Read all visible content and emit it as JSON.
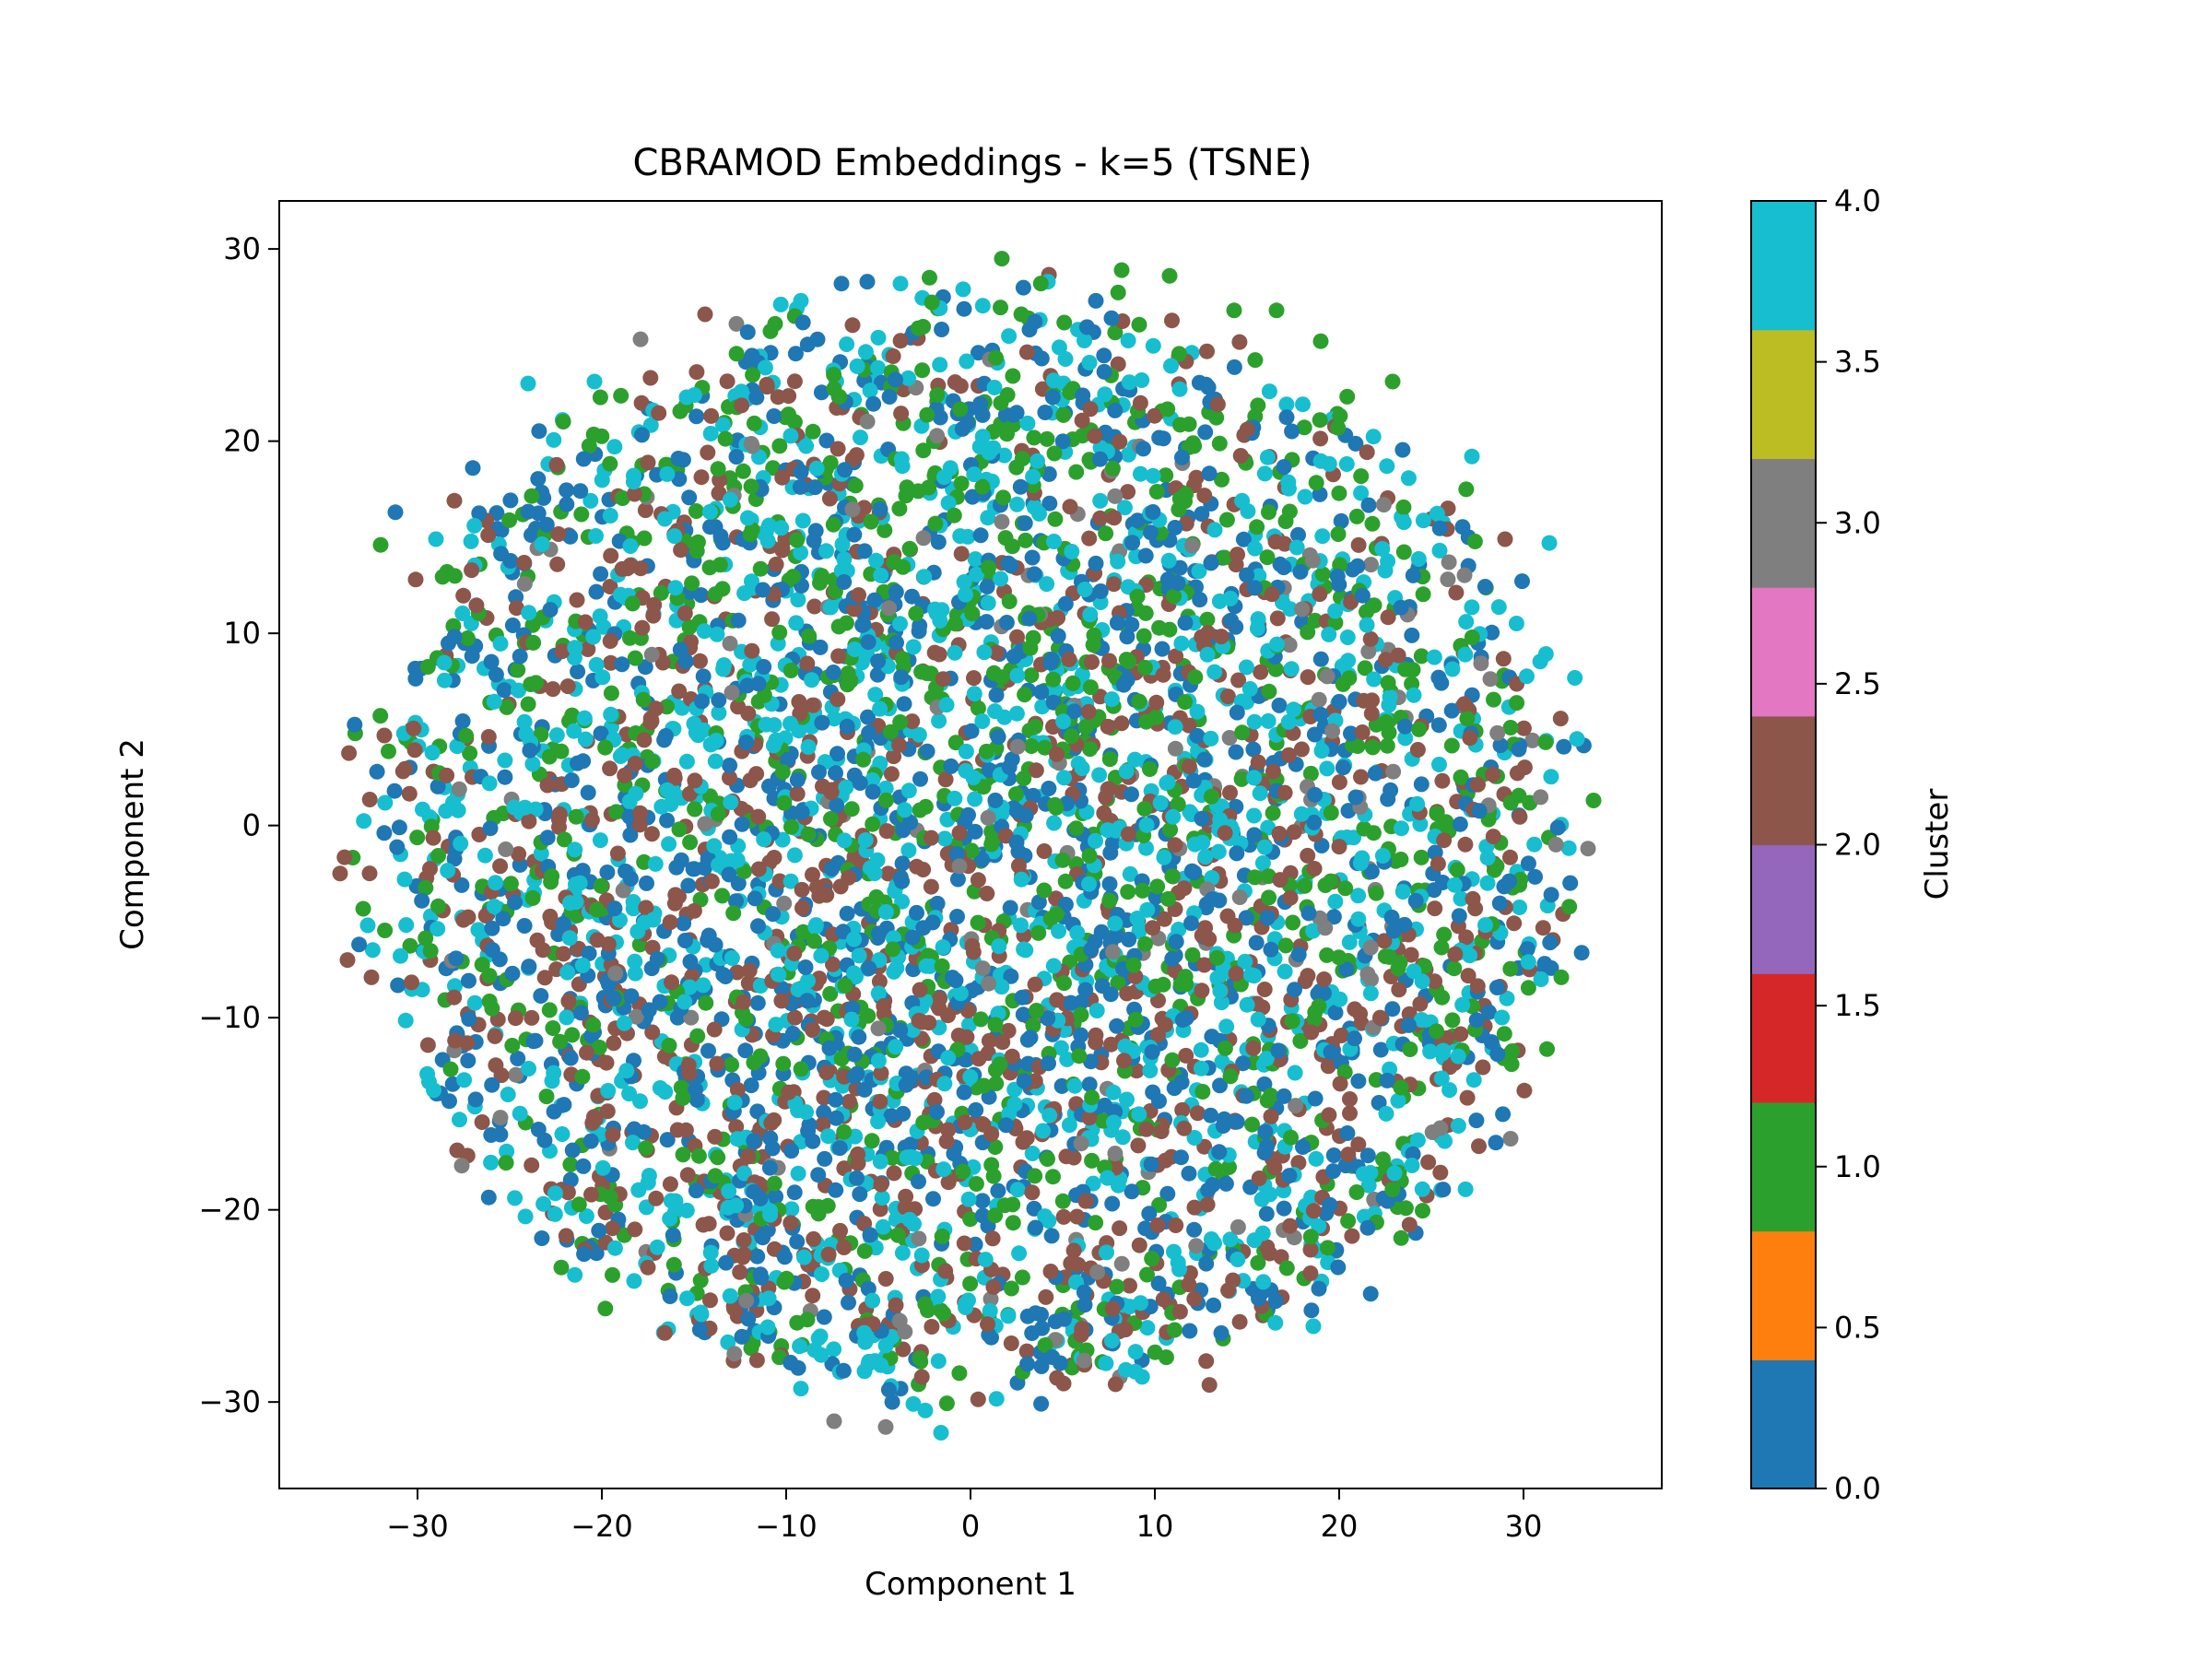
{
  "chart_data": {
    "type": "scatter",
    "title": "CBRAMOD Embeddings - k=5 (TSNE)",
    "xlabel": "Component 1",
    "ylabel": "Component 2",
    "xlim": [
      -37.5,
      37.5
    ],
    "ylim": [
      -34.5,
      32.5
    ],
    "xticks": [
      -30,
      -20,
      -10,
      0,
      10,
      20,
      30
    ],
    "yticks": [
      -30,
      -20,
      -10,
      0,
      10,
      20,
      30
    ],
    "grid": false,
    "colorbar": {
      "label": "Cluster",
      "range": [
        0.0,
        4.0
      ],
      "ticks": [
        0.0,
        0.5,
        1.0,
        1.5,
        2.0,
        2.5,
        3.0,
        3.5,
        4.0
      ],
      "tick_labels": [
        "0.0",
        "0.5",
        "1.0",
        "1.5",
        "2.0",
        "2.5",
        "3.0",
        "3.5",
        "4.0"
      ],
      "colors": [
        "#1f77b4",
        "#ff7f0e",
        "#2ca02c",
        "#d62728",
        "#9467bd",
        "#8c564b",
        "#e377c2",
        "#7f7f7f",
        "#bcbd22",
        "#17becf"
      ]
    },
    "series": [
      {
        "cluster": 0,
        "color": "#1f77b4",
        "count": 1300
      },
      {
        "cluster": 1,
        "color": "#2ca02c",
        "count": 1100
      },
      {
        "cluster": 2,
        "color": "#8c564b",
        "count": 1100
      },
      {
        "cluster": 3,
        "color": "#7f7f7f",
        "count": 160
      },
      {
        "cluster": 4,
        "color": "#17becf",
        "count": 1300
      }
    ],
    "points": [
      [
        -34.2,
        -2.5,
        2
      ],
      [
        -33.8,
        -7.0,
        2
      ],
      [
        -32.5,
        -7.9,
        2
      ],
      [
        -32.0,
        14.6,
        1
      ],
      [
        -31.2,
        16.3,
        0
      ],
      [
        -30.1,
        12.8,
        2
      ],
      [
        -29.0,
        14.9,
        4
      ],
      [
        -28.0,
        16.9,
        2
      ],
      [
        -27.6,
        -17.7,
        3
      ],
      [
        -27.0,
        18.6,
        0
      ],
      [
        -25.5,
        -15.2,
        3
      ],
      [
        -24.0,
        23.0,
        4
      ],
      [
        -23.0,
        -14.1,
        1
      ],
      [
        -22.2,
        -23.0,
        1
      ],
      [
        -20.4,
        23.1,
        4
      ],
      [
        -19.8,
        -21.7,
        2
      ],
      [
        -17.9,
        25.3,
        3
      ],
      [
        -17.5,
        -23.0,
        2
      ],
      [
        -16.3,
        -24.5,
        0
      ],
      [
        -14.4,
        26.6,
        2
      ],
      [
        -12.7,
        26.1,
        3
      ],
      [
        -11.7,
        -26.3,
        0
      ],
      [
        -10.6,
        26.1,
        1
      ],
      [
        -9.2,
        27.3,
        4
      ],
      [
        -9.2,
        -29.3,
        4
      ],
      [
        -7.4,
        -31.0,
        3
      ],
      [
        -7.0,
        28.2,
        0
      ],
      [
        -5.6,
        28.3,
        0
      ],
      [
        -4.6,
        -31.3,
        3
      ],
      [
        -3.8,
        28.2,
        4
      ],
      [
        -3.1,
        -30.1,
        4
      ],
      [
        -1.6,
        -31.6,
        4
      ],
      [
        -0.4,
        27.9,
        4
      ],
      [
        1.7,
        29.5,
        1
      ],
      [
        4.2,
        28.3,
        4
      ],
      [
        6.8,
        27.3,
        0
      ],
      [
        8.2,
        28.9,
        1
      ],
      [
        8.1,
        -28.7,
        3
      ],
      [
        10.8,
        28.6,
        1
      ],
      [
        13.7,
        -26.7,
        1
      ],
      [
        14.3,
        26.8,
        1
      ],
      [
        16.6,
        26.8,
        1
      ],
      [
        19.0,
        25.2,
        1
      ],
      [
        18.9,
        -24.1,
        0
      ],
      [
        22.9,
        23.1,
        1
      ],
      [
        23.0,
        -18.1,
        4
      ],
      [
        25.9,
        16.5,
        2
      ],
      [
        27.2,
        19.2,
        4
      ],
      [
        29.0,
        14.9,
        2
      ],
      [
        29.3,
        -16.3,
        3
      ],
      [
        31.4,
        14.7,
        4
      ],
      [
        32.9,
        4.5,
        4
      ],
      [
        33.5,
        -1.2,
        3
      ],
      [
        33.8,
        1.3,
        1
      ],
      [
        28.3,
        -11.6,
        4
      ],
      [
        29.1,
        -9.0,
        4
      ]
    ]
  }
}
